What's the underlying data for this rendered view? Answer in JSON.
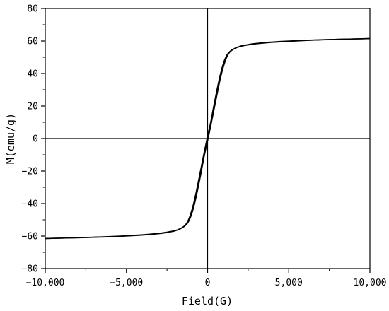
{
  "chart_data": {
    "type": "line",
    "title": "",
    "xlabel": "Field(G)",
    "ylabel": "M(emu/g)",
    "xlim": [
      -10000,
      10000
    ],
    "ylim": [
      -80,
      80
    ],
    "x_ticks": [
      -10000,
      -5000,
      0,
      5000,
      10000
    ],
    "x_tick_labels": [
      "−10,000",
      "−5,000",
      "0",
      "5,000",
      "10,000"
    ],
    "y_ticks": [
      -80,
      -60,
      -40,
      -20,
      0,
      20,
      40,
      60,
      80
    ],
    "y_tick_labels": [
      "−80",
      "−60",
      "−40",
      "−20",
      "0",
      "20",
      "40",
      "60",
      "80"
    ],
    "grid": false,
    "zero_lines": true,
    "line_color": "#000000",
    "series": [
      {
        "branch": "descending",
        "x": [
          10000,
          8000,
          6000,
          4000,
          3000,
          2500,
          2000,
          1700,
          1400,
          1200,
          1000,
          800,
          600,
          400,
          200,
          0,
          -200,
          -400,
          -600,
          -800,
          -1000,
          -1200,
          -1400,
          -1700,
          -2000,
          -2500,
          -3000,
          -4000,
          -6000,
          -8000,
          -10000
        ],
        "y": [
          61.5,
          61.0,
          60.3,
          59.2,
          58.3,
          57.6,
          56.6,
          55.6,
          53.8,
          51.5,
          47.0,
          40.0,
          31.0,
          21.0,
          10.5,
          1.5,
          -8.0,
          -18.0,
          -28.0,
          -37.5,
          -45.0,
          -50.5,
          -53.5,
          -55.5,
          -56.8,
          -57.8,
          -58.5,
          -59.4,
          -60.4,
          -61.0,
          -61.5
        ]
      },
      {
        "branch": "ascending",
        "x": [
          -10000,
          -8000,
          -6000,
          -4000,
          -3000,
          -2500,
          -2000,
          -1700,
          -1400,
          -1200,
          -1000,
          -800,
          -600,
          -400,
          -200,
          0,
          200,
          400,
          600,
          800,
          1000,
          1200,
          1400,
          1700,
          2000,
          2500,
          3000,
          4000,
          6000,
          8000,
          10000
        ],
        "y": [
          -61.5,
          -61.0,
          -60.3,
          -59.2,
          -58.3,
          -57.6,
          -56.6,
          -55.6,
          -53.8,
          -51.5,
          -47.0,
          -40.0,
          -31.0,
          -21.0,
          -10.5,
          -1.5,
          8.0,
          18.0,
          28.0,
          37.5,
          45.0,
          50.5,
          53.5,
          55.5,
          56.8,
          57.8,
          58.5,
          59.4,
          60.4,
          61.0,
          61.5
        ]
      }
    ]
  }
}
